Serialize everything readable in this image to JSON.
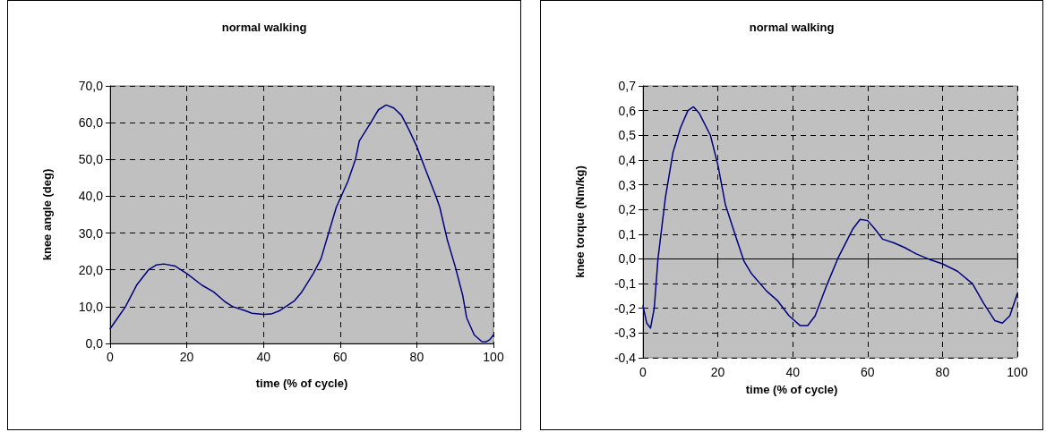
{
  "chart_data": [
    {
      "type": "line",
      "title": "normal walking",
      "xlabel": "time (% of cycle)",
      "ylabel": "knee angle (deg)",
      "xlim": [
        0,
        100
      ],
      "xticks": [
        0,
        20,
        40,
        60,
        80,
        100
      ],
      "ylim": [
        0,
        70
      ],
      "yticks": [
        {
          "value": 0,
          "label": "0,0"
        },
        {
          "value": 10,
          "label": "10,0"
        },
        {
          "value": 20,
          "label": "20,0"
        },
        {
          "value": 30,
          "label": "30,0"
        },
        {
          "value": 40,
          "label": "40,0"
        },
        {
          "value": 50,
          "label": "50,0"
        },
        {
          "value": 60,
          "label": "60,0"
        },
        {
          "value": 70,
          "label": "70,0"
        }
      ],
      "grid": true,
      "marker": "none",
      "line_style": "solid",
      "series": [
        {
          "color": "#000080",
          "x": [
            0,
            2,
            4,
            7,
            10,
            12,
            14,
            17,
            20,
            24,
            27,
            30,
            32,
            35,
            37,
            40,
            42,
            44,
            48,
            50,
            53,
            55,
            57,
            59,
            62,
            64,
            65,
            68,
            70,
            72,
            74,
            76,
            78,
            80,
            82,
            85,
            86,
            88,
            90,
            92,
            93,
            95,
            97,
            98,
            99,
            100
          ],
          "values": [
            4,
            7,
            10,
            16,
            20,
            21.3,
            21.6,
            21,
            19,
            15.8,
            14,
            11.3,
            10,
            9,
            8.2,
            7.9,
            8,
            8.8,
            11.5,
            14,
            19,
            23,
            30,
            37,
            44,
            50,
            55,
            60,
            63.5,
            64.8,
            64,
            62,
            58,
            53.5,
            48,
            40,
            37,
            28,
            21,
            13,
            7,
            2.3,
            0.5,
            0.4,
            1,
            2.3
          ]
        }
      ]
    },
    {
      "type": "line",
      "title": "normal walking",
      "xlabel": "time (% of cycle)",
      "ylabel": "knee torque (Nm/kg)",
      "xlim": [
        0,
        100
      ],
      "xticks": [
        0,
        20,
        40,
        60,
        80,
        100
      ],
      "ylim": [
        -0.4,
        0.7
      ],
      "yticks": [
        {
          "value": -0.4,
          "label": "-0,4"
        },
        {
          "value": -0.3,
          "label": "-0,3"
        },
        {
          "value": -0.2,
          "label": "-0,2"
        },
        {
          "value": -0.1,
          "label": "-0,1"
        },
        {
          "value": 0,
          "label": "0,0"
        },
        {
          "value": 0.1,
          "label": "0,1"
        },
        {
          "value": 0.2,
          "label": "0,2"
        },
        {
          "value": 0.3,
          "label": "0,3"
        },
        {
          "value": 0.4,
          "label": "0,4"
        },
        {
          "value": 0.5,
          "label": "0,5"
        },
        {
          "value": 0.6,
          "label": "0,6"
        },
        {
          "value": 0.7,
          "label": "0,7"
        }
      ],
      "grid": true,
      "marker": "none",
      "line_style": "solid",
      "series": [
        {
          "color": "#000080",
          "x": [
            0,
            1,
            2,
            3,
            4,
            6,
            8,
            10,
            12,
            13.5,
            15,
            18,
            20,
            22,
            25,
            27,
            29,
            33,
            36,
            39,
            42,
            44,
            46,
            49,
            52,
            54,
            56,
            58,
            60,
            62,
            64,
            67,
            70,
            73,
            77,
            80,
            84,
            88,
            91,
            94,
            96,
            98,
            100
          ],
          "values": [
            -0.19,
            -0.26,
            -0.28,
            -0.2,
            0,
            0.25,
            0.43,
            0.53,
            0.6,
            0.615,
            0.59,
            0.5,
            0.38,
            0.22,
            0.08,
            -0.01,
            -0.06,
            -0.13,
            -0.17,
            -0.23,
            -0.27,
            -0.27,
            -0.23,
            -0.11,
            0,
            0.06,
            0.12,
            0.16,
            0.155,
            0.12,
            0.08,
            0.065,
            0.045,
            0.02,
            -0.005,
            -0.02,
            -0.05,
            -0.1,
            -0.18,
            -0.25,
            -0.26,
            -0.23,
            -0.14
          ]
        }
      ]
    }
  ]
}
